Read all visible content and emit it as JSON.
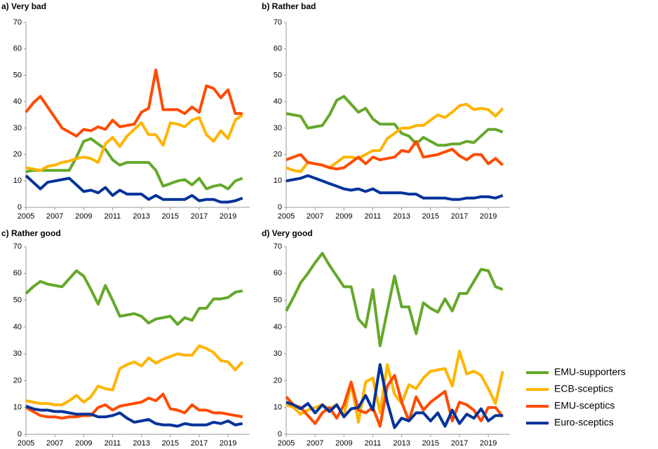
{
  "chart_data": [
    {
      "type": "line",
      "title": "a) Very bad",
      "legend": "lower right",
      "grid": false,
      "x": [
        2005,
        2005.5,
        2006,
        2006.5,
        2007,
        2007.5,
        2008,
        2008.5,
        2009,
        2009.5,
        2010,
        2010.5,
        2011,
        2011.5,
        2012,
        2012.5,
        2013,
        2013.5,
        2014,
        2014.5,
        2015,
        2015.5,
        2016,
        2016.5,
        2017,
        2017.5,
        2018,
        2018.5,
        2019,
        2019.5,
        2020
      ],
      "xlim": [
        2005,
        2020.5
      ],
      "xticks": [
        2005,
        2007,
        2009,
        2011,
        2013,
        2015,
        2017,
        2019
      ],
      "ylim": [
        0,
        70
      ],
      "yticks": [
        0,
        10,
        20,
        30,
        40,
        50,
        60,
        70
      ],
      "series": [
        {
          "name": "EMU-supporters",
          "color": "#65a82b",
          "values": [
            13.5,
            14,
            14,
            14,
            14,
            14,
            14,
            19,
            25,
            26,
            24,
            22,
            18,
            16,
            17,
            17,
            17,
            17,
            14,
            8,
            9,
            10,
            10.5,
            8.5,
            11,
            7,
            8,
            8.5,
            7,
            10,
            11
          ]
        },
        {
          "name": "ECB-sceptics",
          "color": "#ffb400",
          "values": [
            15,
            14.5,
            14,
            15.5,
            16,
            17,
            17.5,
            18.5,
            19,
            18.5,
            17,
            24,
            26.5,
            23,
            27,
            29.5,
            32,
            27.5,
            27.5,
            23.5,
            32,
            31.5,
            30.5,
            33,
            34,
            27.5,
            25,
            29,
            26,
            33,
            35
          ]
        },
        {
          "name": "EMU-sceptics",
          "color": "#ff4b00",
          "values": [
            36,
            39.5,
            42,
            38,
            34,
            30,
            28.5,
            27,
            29.5,
            29,
            30.5,
            29.5,
            33,
            30.5,
            31,
            31.5,
            36,
            37.5,
            52,
            37,
            37,
            37,
            35.5,
            38,
            36,
            46,
            45,
            41.5,
            44.5,
            35.5,
            35.5
          ]
        },
        {
          "name": "Euro-sceptics",
          "color": "#003299",
          "values": [
            12,
            9.5,
            7,
            9.5,
            10,
            10.5,
            11,
            8.5,
            6,
            6.5,
            5.5,
            7.5,
            4.5,
            6.5,
            5,
            5,
            5,
            3,
            4.5,
            3,
            3,
            3,
            3,
            4.5,
            2.5,
            3,
            3,
            2,
            2,
            2.5,
            3.5
          ]
        }
      ]
    },
    {
      "type": "line",
      "title": "b) Rather bad",
      "grid": false,
      "x": [
        2005,
        2005.5,
        2006,
        2006.5,
        2007,
        2007.5,
        2008,
        2008.5,
        2009,
        2009.5,
        2010,
        2010.5,
        2011,
        2011.5,
        2012,
        2012.5,
        2013,
        2013.5,
        2014,
        2014.5,
        2015,
        2015.5,
        2016,
        2016.5,
        2017,
        2017.5,
        2018,
        2018.5,
        2019,
        2019.5,
        2020
      ],
      "xlim": [
        2005,
        2020.5
      ],
      "xticks": [
        2005,
        2007,
        2009,
        2011,
        2013,
        2015,
        2017,
        2019
      ],
      "ylim": [
        0,
        70
      ],
      "yticks": [
        0,
        10,
        20,
        30,
        40,
        50,
        60,
        70
      ],
      "series": [
        {
          "name": "EMU-supporters",
          "color": "#65a82b",
          "values": [
            35.5,
            35,
            34.5,
            30,
            30.5,
            31,
            35,
            40.5,
            42,
            39,
            36,
            37.5,
            33.5,
            31.5,
            31.5,
            31.5,
            28,
            27,
            24,
            26.5,
            25,
            23.5,
            23.5,
            24,
            24,
            25,
            24.5,
            27,
            29.5,
            29.5,
            28.5
          ]
        },
        {
          "name": "ECB-sceptics",
          "color": "#ffb400",
          "values": [
            15,
            14,
            13.5,
            17,
            16.5,
            16,
            15,
            17,
            19,
            19,
            18.5,
            20,
            21.5,
            21.5,
            26,
            28,
            30,
            30,
            31,
            31,
            33,
            35,
            34,
            36,
            38.5,
            39,
            37,
            37.5,
            37,
            34.5,
            37.5
          ]
        },
        {
          "name": "EMU-sceptics",
          "color": "#ff4b00",
          "values": [
            18,
            19,
            20,
            17,
            16.5,
            16,
            15,
            14.5,
            15,
            17,
            19,
            16.5,
            19,
            18,
            18.5,
            19,
            21.5,
            21,
            25,
            19,
            19.5,
            20,
            21,
            22,
            19.5,
            18,
            20,
            20,
            16.5,
            18.5,
            16
          ]
        },
        {
          "name": "Euro-sceptics",
          "color": "#003299",
          "values": [
            10,
            10.5,
            11,
            12,
            11,
            10,
            9,
            8,
            7,
            6.5,
            7,
            6,
            7,
            5.5,
            5.5,
            5.5,
            5.5,
            5,
            5,
            3.5,
            3.5,
            3.5,
            3.5,
            3,
            3,
            3.5,
            3.5,
            4,
            4,
            3.5,
            4.5
          ]
        }
      ]
    },
    {
      "type": "line",
      "title": "c) Rather good",
      "grid": false,
      "x": [
        2005,
        2005.5,
        2006,
        2006.5,
        2007,
        2007.5,
        2008,
        2008.5,
        2009,
        2009.5,
        2010,
        2010.5,
        2011,
        2011.5,
        2012,
        2012.5,
        2013,
        2013.5,
        2014,
        2014.5,
        2015,
        2015.5,
        2016,
        2016.5,
        2017,
        2017.5,
        2018,
        2018.5,
        2019,
        2019.5,
        2020
      ],
      "xlim": [
        2005,
        2020.5
      ],
      "xticks": [
        2005,
        2007,
        2009,
        2011,
        2013,
        2015,
        2017,
        2019
      ],
      "ylim": [
        0,
        70
      ],
      "yticks": [
        0,
        10,
        20,
        30,
        40,
        50,
        60,
        70
      ],
      "series": [
        {
          "name": "EMU-supporters",
          "color": "#65a82b",
          "values": [
            52.5,
            55,
            57,
            56,
            55.5,
            55,
            58,
            61,
            59,
            54,
            48.5,
            55.5,
            50,
            44,
            44.5,
            45,
            44,
            41.5,
            43,
            43.5,
            44,
            41,
            43.5,
            42.5,
            47,
            47,
            50.5,
            50.5,
            51,
            53,
            53.5
          ]
        },
        {
          "name": "ECB-sceptics",
          "color": "#ffb400",
          "values": [
            12.5,
            12,
            11.5,
            11.5,
            11,
            11,
            12.5,
            14.5,
            12,
            14,
            18,
            17,
            16.5,
            24.5,
            26,
            27,
            25.5,
            28.5,
            26.5,
            28,
            29,
            30,
            29.5,
            29.5,
            33,
            32,
            30.5,
            27.5,
            27,
            24,
            27
          ]
        },
        {
          "name": "EMU-sceptics",
          "color": "#ff4b00",
          "values": [
            10,
            8.5,
            7,
            6.5,
            6.5,
            6,
            6.5,
            6.5,
            7,
            7,
            10,
            11,
            9,
            10.5,
            11,
            11.5,
            12,
            13.5,
            12.5,
            15,
            9.5,
            9,
            8,
            11,
            9,
            9,
            8,
            8,
            7.5,
            7,
            6.5
          ]
        },
        {
          "name": "Euro-sceptics",
          "color": "#003299",
          "values": [
            10.5,
            9.5,
            9,
            9,
            8.5,
            8.5,
            8,
            7.5,
            7.5,
            7.5,
            6.5,
            6.5,
            7,
            8,
            6,
            4.5,
            5,
            5.5,
            4,
            3.5,
            3.5,
            3,
            4,
            3.5,
            3.5,
            3.5,
            4.5,
            4,
            5,
            3.5,
            4
          ]
        }
      ]
    },
    {
      "type": "line",
      "title": "d) Very good",
      "grid": false,
      "x": [
        2005,
        2005.5,
        2006,
        2006.5,
        2007,
        2007.5,
        2008,
        2008.5,
        2009,
        2009.5,
        2010,
        2010.5,
        2011,
        2011.5,
        2012,
        2012.5,
        2013,
        2013.5,
        2014,
        2014.5,
        2015,
        2015.5,
        2016,
        2016.5,
        2017,
        2017.5,
        2018,
        2018.5,
        2019,
        2019.5,
        2020
      ],
      "xlim": [
        2005,
        2020.5
      ],
      "xticks": [
        2005,
        2007,
        2009,
        2011,
        2013,
        2015,
        2017,
        2019
      ],
      "ylim": [
        0,
        70
      ],
      "yticks": [
        0,
        10,
        20,
        30,
        40,
        50,
        60,
        70
      ],
      "series": [
        {
          "name": "EMU-supporters",
          "color": "#65a82b",
          "values": [
            46,
            51,
            56.5,
            60,
            64,
            67.5,
            63,
            59,
            55,
            55,
            43,
            40,
            54,
            33,
            46,
            59,
            47.5,
            47.5,
            37.5,
            49,
            47,
            45.5,
            50.5,
            46,
            52.5,
            52.5,
            57,
            61.5,
            61,
            55,
            54
          ]
        },
        {
          "name": "ECB-sceptics",
          "color": "#ffb400",
          "values": [
            11,
            10,
            7.5,
            9,
            10,
            11,
            9.5,
            11,
            7,
            19,
            4.5,
            19.5,
            21,
            8,
            26,
            15,
            11.5,
            18.5,
            17,
            21,
            23.5,
            24,
            24.5,
            18,
            31,
            22.5,
            23.5,
            22,
            17,
            11.5,
            23.5
          ]
        },
        {
          "name": "EMU-sceptics",
          "color": "#ff4b00",
          "values": [
            14,
            11,
            10,
            7,
            4,
            8,
            10,
            6,
            11,
            19.5,
            9,
            8,
            10,
            3,
            18,
            22,
            12,
            5,
            14,
            9,
            12,
            14,
            16,
            5,
            12,
            11,
            9,
            5,
            10,
            10,
            6.5
          ]
        },
        {
          "name": "Euro-sceptics",
          "color": "#003299",
          "values": [
            12,
            11,
            9.5,
            11.5,
            8,
            11,
            8.5,
            11,
            6.5,
            9.5,
            10,
            14.5,
            9,
            26,
            12,
            2.5,
            6,
            5,
            8,
            8,
            5,
            8,
            3,
            9,
            4,
            7.5,
            6,
            9.5,
            5,
            7,
            7
          ]
        }
      ]
    }
  ]
}
